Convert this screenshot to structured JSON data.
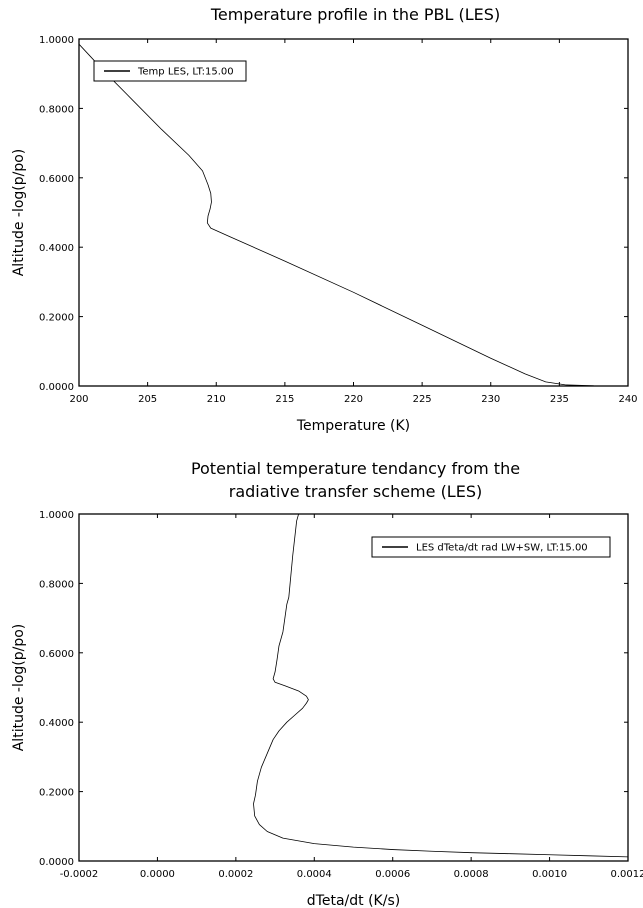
{
  "chart_data": [
    {
      "type": "line",
      "title": [
        "Temperature profile in the PBL (LES)"
      ],
      "xlabel": "Temperature (K)",
      "ylabel": "Altitude -log(p/po)",
      "xlim": [
        200,
        240
      ],
      "ylim": [
        0,
        1
      ],
      "xticks": [
        200,
        205,
        210,
        215,
        220,
        225,
        230,
        235,
        240
      ],
      "xtick_labels": [
        "200",
        "205",
        "210",
        "215",
        "220",
        "225",
        "230",
        "235",
        "240"
      ],
      "yticks": [
        0,
        0.2,
        0.4,
        0.6,
        0.8,
        1.0
      ],
      "ytick_labels": [
        "0.0000",
        "0.2000",
        "0.4000",
        "0.6000",
        "0.8000",
        "1.0000"
      ],
      "grid": false,
      "legend_position": "top-left",
      "series": [
        {
          "name": "Temp LES, LT:15.00",
          "color": "#000000",
          "points": [
            [
              200.0,
              0.985
            ],
            [
              202.0,
              0.9
            ],
            [
              204.0,
              0.82
            ],
            [
              206.0,
              0.74
            ],
            [
              208.0,
              0.665
            ],
            [
              209.0,
              0.62
            ],
            [
              209.4,
              0.58
            ],
            [
              209.6,
              0.555
            ],
            [
              209.65,
              0.53
            ],
            [
              209.55,
              0.51
            ],
            [
              209.4,
              0.49
            ],
            [
              209.35,
              0.47
            ],
            [
              209.6,
              0.455
            ],
            [
              211.0,
              0.43
            ],
            [
              215.0,
              0.36
            ],
            [
              220.0,
              0.27
            ],
            [
              225.0,
              0.175
            ],
            [
              230.0,
              0.08
            ],
            [
              232.5,
              0.035
            ],
            [
              234.0,
              0.012
            ],
            [
              235.5,
              0.003
            ],
            [
              237.5,
              0.0005
            ],
            [
              240.0,
              0.0
            ]
          ]
        }
      ]
    },
    {
      "type": "line",
      "title": [
        "Potential temperature tendancy from the",
        "radiative transfer scheme (LES)"
      ],
      "xlabel": "dTeta/dt (K/s)",
      "ylabel": "Altitude -log(p/po)",
      "xlim": [
        -0.0002,
        0.0012
      ],
      "ylim": [
        0,
        1
      ],
      "xticks": [
        -0.0002,
        0.0,
        0.0002,
        0.0004,
        0.0006,
        0.0008,
        0.001,
        0.0012
      ],
      "xtick_labels": [
        "-0.0002",
        "0.0000",
        "0.0002",
        "0.0004",
        "0.0006",
        "0.0008",
        "0.0010",
        "0.0012"
      ],
      "yticks": [
        0,
        0.2,
        0.4,
        0.6,
        0.8,
        1.0
      ],
      "ytick_labels": [
        "0.0000",
        "0.2000",
        "0.4000",
        "0.6000",
        "0.8000",
        "1.0000"
      ],
      "grid": false,
      "legend_position": "top-right",
      "series": [
        {
          "name": "LES dTeta/dt rad LW+SW, LT:15.00",
          "color": "#000000",
          "points": [
            [
              0.00036,
              1.0
            ],
            [
              0.000355,
              0.98
            ],
            [
              0.00035,
              0.93
            ],
            [
              0.000345,
              0.88
            ],
            [
              0.00034,
              0.82
            ],
            [
              0.000335,
              0.76
            ],
            [
              0.00033,
              0.74
            ],
            [
              0.000325,
              0.7
            ],
            [
              0.00032,
              0.66
            ],
            [
              0.00031,
              0.62
            ],
            [
              0.000305,
              0.58
            ],
            [
              0.0003,
              0.545
            ],
            [
              0.000295,
              0.525
            ],
            [
              0.0003,
              0.515
            ],
            [
              0.000325,
              0.505
            ],
            [
              0.00036,
              0.49
            ],
            [
              0.00038,
              0.475
            ],
            [
              0.000385,
              0.465
            ],
            [
              0.00038,
              0.455
            ],
            [
              0.00037,
              0.44
            ],
            [
              0.00035,
              0.42
            ],
            [
              0.00033,
              0.4
            ],
            [
              0.00031,
              0.375
            ],
            [
              0.000295,
              0.35
            ],
            [
              0.00028,
              0.31
            ],
            [
              0.000265,
              0.27
            ],
            [
              0.000255,
              0.23
            ],
            [
              0.00025,
              0.19
            ],
            [
              0.000245,
              0.165
            ],
            [
              0.000248,
              0.13
            ],
            [
              0.00026,
              0.105
            ],
            [
              0.00028,
              0.085
            ],
            [
              0.00032,
              0.066
            ],
            [
              0.0004,
              0.05
            ],
            [
              0.0005,
              0.04
            ],
            [
              0.0006,
              0.033
            ],
            [
              0.0007,
              0.028
            ],
            [
              0.0008,
              0.024
            ],
            [
              0.0009,
              0.021
            ],
            [
              0.001,
              0.018
            ],
            [
              0.0011,
              0.015
            ],
            [
              0.0012,
              0.012
            ]
          ]
        }
      ]
    }
  ]
}
